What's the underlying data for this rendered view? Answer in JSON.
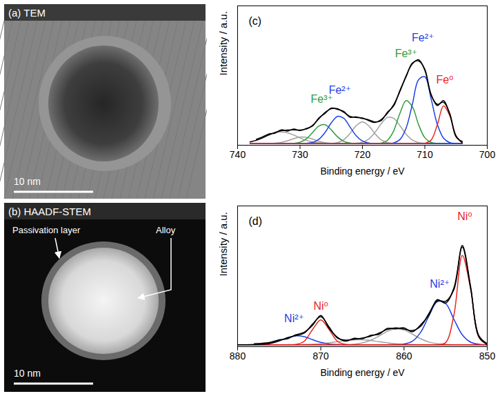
{
  "images": [
    {
      "label": "(a) TEM",
      "scale_bar": "10 nm"
    },
    {
      "label": "(b) HAADF-STEM",
      "scale_bar": "10 nm",
      "annotations": [
        "Passivation layer",
        "Alloy"
      ]
    }
  ],
  "chart_data": [
    {
      "type": "line",
      "title": "(c)",
      "x_label": "Binding energy / eV",
      "y_label": "Intensity / a.u.",
      "xlim": [
        740,
        700
      ],
      "xticks": [
        740,
        730,
        720,
        710,
        700
      ],
      "ylim": [
        -2,
        165
      ],
      "tick_labels": "x",
      "x": [
        704,
        705,
        706,
        707,
        708,
        709,
        710,
        711,
        712,
        713,
        714,
        715,
        716,
        717,
        718,
        719,
        720,
        721,
        722,
        723,
        724,
        725,
        726,
        727,
        728,
        729,
        730,
        731,
        732,
        733,
        734,
        735,
        736,
        737,
        738
      ],
      "series": [
        {
          "color": "#a0a0a0",
          "line_style": "solid",
          "values": [
            0,
            0,
            0,
            0,
            0,
            0,
            0.3,
            1.2,
            4.3,
            11.3,
            21.6,
            30.3,
            31.2,
            23.7,
            13.2,
            5.4,
            1.6,
            0.4,
            0.1,
            0,
            0,
            0,
            0,
            0,
            0,
            0,
            0,
            0,
            0,
            0,
            0,
            0,
            0,
            0,
            0
          ]
        },
        {
          "color": "#a0a0a0",
          "line_style": "solid",
          "values": [
            0,
            0,
            0,
            0,
            0,
            0,
            0,
            0,
            0,
            0,
            0,
            0.2,
            1.1,
            4.5,
            11.9,
            21.4,
            26,
            21.4,
            11.9,
            4.5,
            1.1,
            0.2,
            0,
            0,
            0,
            0,
            0,
            0,
            0,
            0,
            0,
            0,
            0,
            0,
            0
          ]
        },
        {
          "color": "#a0a0a0",
          "line_style": "solid",
          "values": [
            0,
            0,
            0,
            0,
            0,
            0,
            0,
            0,
            0,
            0,
            0,
            0,
            0,
            0,
            0,
            0,
            0,
            0,
            0,
            0,
            0,
            0.3,
            1.1,
            2.8,
            5.4,
            7.6,
            7.8,
            5.9,
            3.3,
            1.3,
            0.4,
            0.1,
            0,
            0,
            0
          ]
        },
        {
          "color": "#a0a0a0",
          "line_style": "solid",
          "values": [
            0,
            0,
            0,
            0,
            0,
            0,
            0,
            0,
            0,
            0,
            0,
            0,
            0,
            0,
            0,
            0,
            0,
            0,
            0,
            0,
            0,
            0.1,
            0.3,
            0.8,
            1.9,
            3.9,
            6.8,
            10.2,
            12.9,
            14,
            12.9,
            10.2,
            6.8,
            3.9,
            1.9
          ]
        },
        {
          "color": "#2e9d3a",
          "line_style": "solid",
          "values": [
            0,
            0,
            0,
            0,
            0.1,
            1.3,
            7.0,
            22.7,
            44.2,
            51.5,
            36.0,
            15.1,
            3.8,
            0.6,
            0,
            0,
            0,
            0,
            0,
            0,
            0,
            0,
            0,
            0,
            0,
            0,
            0,
            0,
            0,
            0,
            0,
            0,
            0,
            0,
            0
          ]
        },
        {
          "color": "#2e9d3a",
          "line_style": "solid",
          "values": [
            0,
            0,
            0,
            0,
            0,
            0,
            0,
            0,
            0,
            0,
            0,
            0,
            0,
            0,
            0,
            0,
            0,
            0.1,
            0.6,
            2.7,
            8.2,
            16.5,
            22.6,
            20.9,
            13.1,
            5.5,
            1.6,
            0.3,
            0,
            0,
            0,
            0,
            0,
            0,
            0
          ]
        },
        {
          "color": "#1d3fe6",
          "line_style": "solid",
          "values": [
            0,
            0.1,
            1.1,
            6.4,
            23.1,
            53.7,
            80.1,
            76.6,
            47.0,
            18.5,
            4.7,
            0.8,
            0.1,
            0,
            0,
            0,
            0,
            0,
            0,
            0,
            0,
            0,
            0,
            0,
            0,
            0,
            0,
            0,
            0,
            0,
            0,
            0,
            0,
            0,
            0
          ]
        },
        {
          "color": "#1d3fe6",
          "line_style": "solid",
          "values": [
            0,
            0,
            0,
            0,
            0,
            0,
            0,
            0,
            0,
            0,
            0,
            0,
            0,
            0,
            0.1,
            0.7,
            3.1,
            9.4,
            20.0,
            30.3,
            32.5,
            24.6,
            13.2,
            5.0,
            1.3,
            0.3,
            0,
            0,
            0,
            0,
            0,
            0,
            0,
            0,
            0
          ]
        },
        {
          "color": "#e8241f",
          "line_style": "solid",
          "values": [
            0.9,
            9.1,
            33.4,
            45.1,
            22.4,
            4.1,
            0.3,
            0,
            0,
            0,
            0,
            0,
            0,
            0,
            0,
            0,
            0,
            0,
            0,
            0,
            0,
            0,
            0,
            0,
            0,
            0,
            0,
            0,
            0,
            0,
            0,
            0,
            0,
            0,
            0
          ]
        },
        {
          "color": "#000000",
          "line_style": "solid",
          "values": [
            0.9,
            9.2,
            34.5,
            51.5,
            45.6,
            59.1,
            87.7,
            100.5,
            95.5,
            81.3,
            62.3,
            46.4,
            36.2,
            28.8,
            25.2,
            27.5,
            30.7,
            31.3,
            32.6,
            37.5,
            41.8,
            41.7,
            37.2,
            29.5,
            21.7,
            17.3,
            16.2,
            16.4,
            16.2,
            15.3,
            13.3,
            10.3,
            6.8,
            3.9,
            1.9
          ]
        },
        {
          "color": "#000000",
          "line_style": "solid",
          "values": [
            2.5,
            8.0,
            36.0,
            49.5,
            47.0,
            58.0,
            89.0,
            99.0,
            96.5,
            80.0,
            63.5,
            45.0,
            37.5,
            27.5,
            26.0,
            28.5,
            30.0,
            32.0,
            31.5,
            38.5,
            41.0,
            42.5,
            36.0,
            30.5,
            21.0,
            18.0,
            15.5,
            17.5,
            15.0,
            16.5,
            12.5,
            11.5,
            8.0,
            5.0,
            null
          ]
        }
      ],
      "annotations": [
        {
          "text": "Fe²⁺",
          "x": 710.3,
          "y": 127,
          "color": "#1d3fe6"
        },
        {
          "text": "Fe³⁺",
          "x": 713.0,
          "y": 108,
          "color": "#2e9d3a"
        },
        {
          "text": "Fe⁰",
          "x": 706.8,
          "y": 76,
          "color": "#e8241f"
        },
        {
          "text": "Fe²⁺",
          "x": 723.6,
          "y": 64,
          "color": "#1d3fe6"
        },
        {
          "text": "Fe³⁺",
          "x": 726.5,
          "y": 53,
          "color": "#2e9d3a"
        }
      ]
    },
    {
      "type": "line",
      "title": "(d)",
      "x_label": "Binding energy / eV",
      "y_label": "Intensity / a.u.",
      "xlim": [
        880,
        850
      ],
      "xticks": [
        880,
        870,
        860,
        850
      ],
      "ylim": [
        -2,
        140
      ],
      "tick_labels": "x",
      "x": [
        850,
        851,
        852,
        853,
        854,
        855,
        856,
        857,
        858,
        859,
        860,
        861,
        862,
        863,
        864,
        865,
        866,
        867,
        868,
        869,
        870,
        871,
        872,
        873,
        874,
        875,
        876,
        877,
        878,
        879,
        880
      ],
      "series": [
        {
          "color": "#a0a0a0",
          "line_style": "solid",
          "values": [
            0,
            0,
            0,
            0,
            0,
            0.2,
            0.9,
            2.6,
            6.0,
            10.7,
            14.8,
            15.9,
            13.4,
            8.7,
            4.4,
            1.8,
            0.5,
            0.1,
            0,
            0,
            0,
            0,
            0,
            0,
            0,
            0,
            0,
            0,
            0,
            0,
            0
          ]
        },
        {
          "color": "#a0a0a0",
          "line_style": "solid",
          "values": [
            0,
            0,
            0,
            0,
            0,
            0,
            0,
            0,
            0,
            0.2,
            0.4,
            1.0,
            1.9,
            3.0,
            4.2,
            4.9,
            4.9,
            4.2,
            3.0,
            1.9,
            1.0,
            0.4,
            0.2,
            0,
            0,
            0,
            0,
            0,
            0,
            0,
            0
          ]
        },
        {
          "color": "#1d3fe6",
          "line_style": "solid",
          "values": [
            0,
            0.4,
            2.5,
            10.0,
            25.5,
            41.5,
            43.4,
            29.1,
            12.5,
            3.4,
            0.6,
            0.1,
            0,
            0,
            0,
            0,
            0,
            0,
            0,
            0,
            0,
            0,
            0,
            0,
            0,
            0,
            0,
            0,
            0,
            0,
            0
          ]
        },
        {
          "color": "#1d3fe6",
          "line_style": "solid",
          "values": [
            0,
            0,
            0,
            0,
            0,
            0,
            0,
            0,
            0,
            0,
            0,
            0,
            0,
            0,
            0,
            0,
            0,
            0,
            0.2,
            0.7,
            2.3,
            5.1,
            8.1,
            8.9,
            7.0,
            3.9,
            1.5,
            0.4,
            0.1,
            0,
            0
          ]
        },
        {
          "color": "#e8241f",
          "line_style": "solid",
          "values": [
            0.2,
            7.4,
            56.4,
            90.1,
            30.2,
            2.1,
            0,
            0,
            0,
            0,
            0,
            0,
            0,
            0,
            0,
            0,
            0,
            0,
            0,
            0,
            0,
            0,
            0,
            0,
            0,
            0,
            0,
            0,
            0,
            0,
            0
          ]
        },
        {
          "color": "#e8241f",
          "line_style": "solid",
          "values": [
            0,
            0,
            0,
            0,
            0,
            0,
            0,
            0,
            0,
            0,
            0,
            0,
            0,
            0,
            0,
            0,
            0,
            0.3,
            3.4,
            15.2,
            25,
            15.2,
            3.4,
            0.3,
            0,
            0,
            0,
            0,
            0,
            0,
            0
          ]
        },
        {
          "color": "#000000",
          "line_style": "solid",
          "values": [
            0.2,
            7.8,
            58.9,
            100.1,
            55.7,
            43.8,
            44.3,
            31.7,
            18.5,
            14.3,
            15.8,
            17.0,
            15.3,
            11.7,
            8.6,
            6.7,
            5.4,
            4.6,
            6.6,
            17.8,
            28.3,
            20.7,
            11.7,
            9.2,
            7.0,
            3.9,
            1.5,
            0.4,
            0.1,
            0,
            0
          ]
        },
        {
          "color": "#000000",
          "line_style": "solid",
          "values": [
            1.0,
            9.0,
            57.0,
            98.5,
            57.5,
            42.0,
            45.5,
            30.0,
            20.0,
            13.0,
            17.0,
            16.0,
            16.5,
            10.5,
            9.5,
            6.0,
            6.5,
            3.5,
            7.5,
            16.5,
            29.5,
            19.5,
            12.5,
            10.0,
            6.0,
            5.0,
            2.5,
            1.5,
            1.0,
            null,
            null
          ]
        }
      ],
      "annotations": [
        {
          "text": "Ni⁰",
          "x": 852.7,
          "y": 129,
          "color": "#e8241f"
        },
        {
          "text": "Ni²⁺",
          "x": 855.7,
          "y": 61,
          "color": "#1d3fe6"
        },
        {
          "text": "Ni⁰",
          "x": 870.0,
          "y": 39,
          "color": "#e8241f"
        },
        {
          "text": "Ni²⁺",
          "x": 873.2,
          "y": 26,
          "color": "#1d3fe6"
        }
      ]
    }
  ]
}
